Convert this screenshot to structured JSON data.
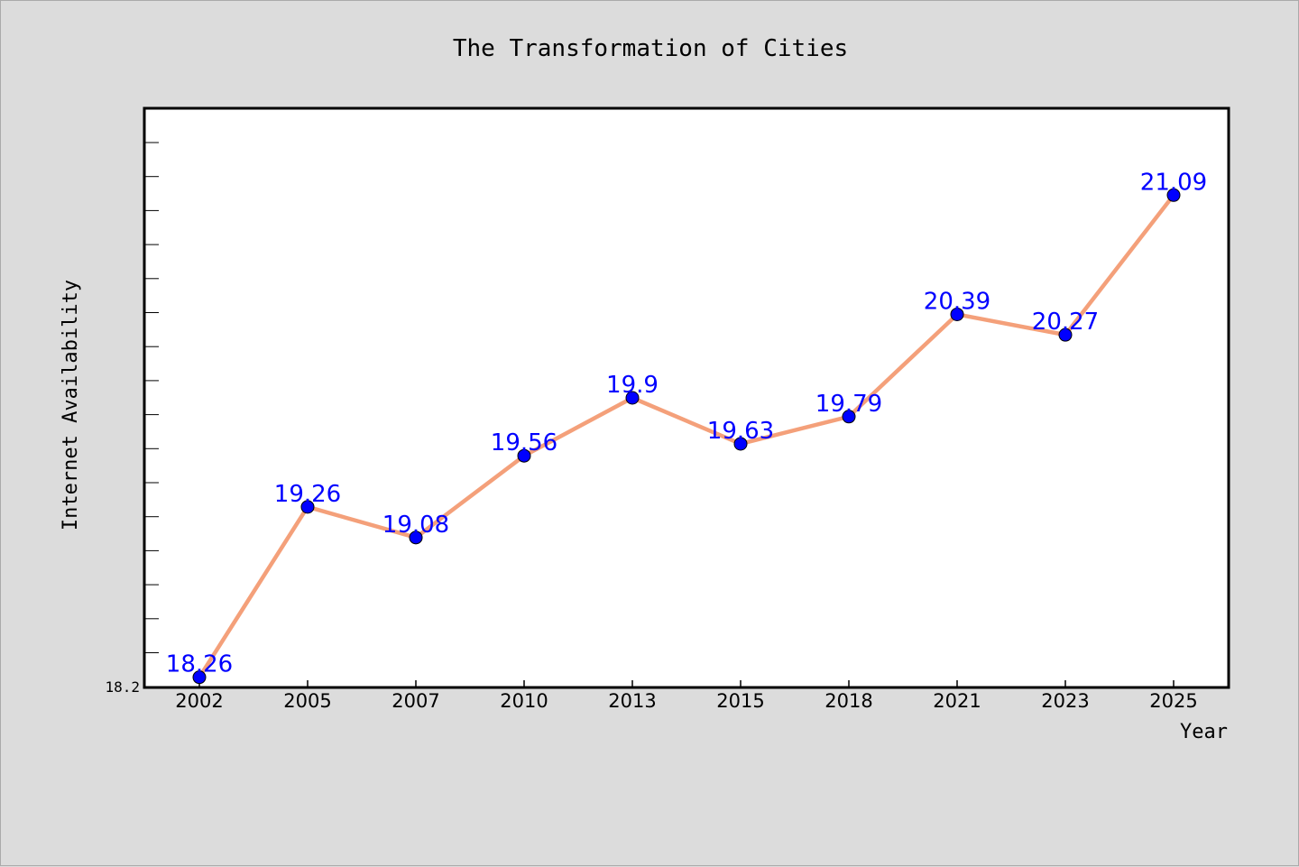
{
  "chart_data": {
    "type": "line",
    "title": "The Transformation of Cities",
    "xlabel": "Year",
    "ylabel": "Internet Availability",
    "categories": [
      "2002",
      "2005",
      "2007",
      "2010",
      "2013",
      "2015",
      "2018",
      "2021",
      "2023",
      "2025"
    ],
    "series": [
      {
        "values": [
          18.26,
          19.26,
          19.08,
          19.56,
          19.9,
          19.63,
          19.79,
          20.39,
          20.27,
          21.09
        ]
      }
    ],
    "yticks": [
      "18.2"
    ],
    "ylim": [
      18.2,
      21.6
    ],
    "grid": false,
    "legend": "none",
    "colors": {
      "background": "#dcdcdc",
      "plot_background": "#ffffff",
      "line": "#f4a07a",
      "marker": "#0000ff",
      "data_label": "#0000ff"
    }
  }
}
